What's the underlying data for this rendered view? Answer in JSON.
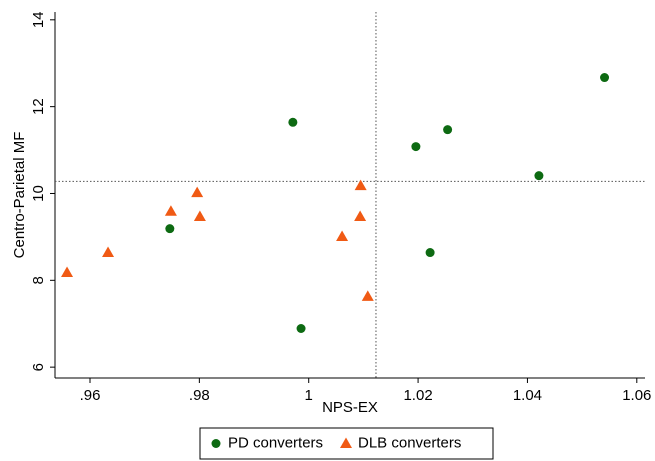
{
  "chart_data": {
    "type": "scatter",
    "x_label": "NPS-EX",
    "y_label": "Centro-Parietal MF",
    "xlim": [
      0.9536,
      1.0615
    ],
    "ylim": [
      5.75,
      14.18
    ],
    "xticks": [
      {
        "value": 0.96,
        "label": ".96"
      },
      {
        "value": 0.98,
        "label": ".98"
      },
      1,
      1.02,
      1.04,
      1.06
    ],
    "yticks": [
      6,
      8,
      10,
      12,
      14
    ],
    "reference_lines": {
      "x": 1.0123,
      "y": 10.28
    },
    "legend": "bottom",
    "series": [
      {
        "name": "PD converters",
        "color": "#0d6a12",
        "marker": "circle",
        "x": [
          0.9971,
          0.9746,
          0.9986,
          1.0196,
          1.0254,
          1.0421,
          1.0541,
          1.0222
        ],
        "values": [
          11.64,
          9.19,
          6.89,
          11.08,
          11.47,
          10.41,
          12.67,
          8.64
        ]
      },
      {
        "name": "DLB converters",
        "color": "#f05a14",
        "marker": "triangle",
        "x": [
          0.9558,
          0.9633,
          0.9748,
          0.9796,
          0.9801,
          1.0061,
          1.0095,
          1.0094,
          1.0108
        ],
        "values": [
          8.18,
          8.64,
          9.59,
          10.02,
          9.47,
          9.01,
          10.18,
          9.47,
          7.63
        ]
      }
    ]
  }
}
